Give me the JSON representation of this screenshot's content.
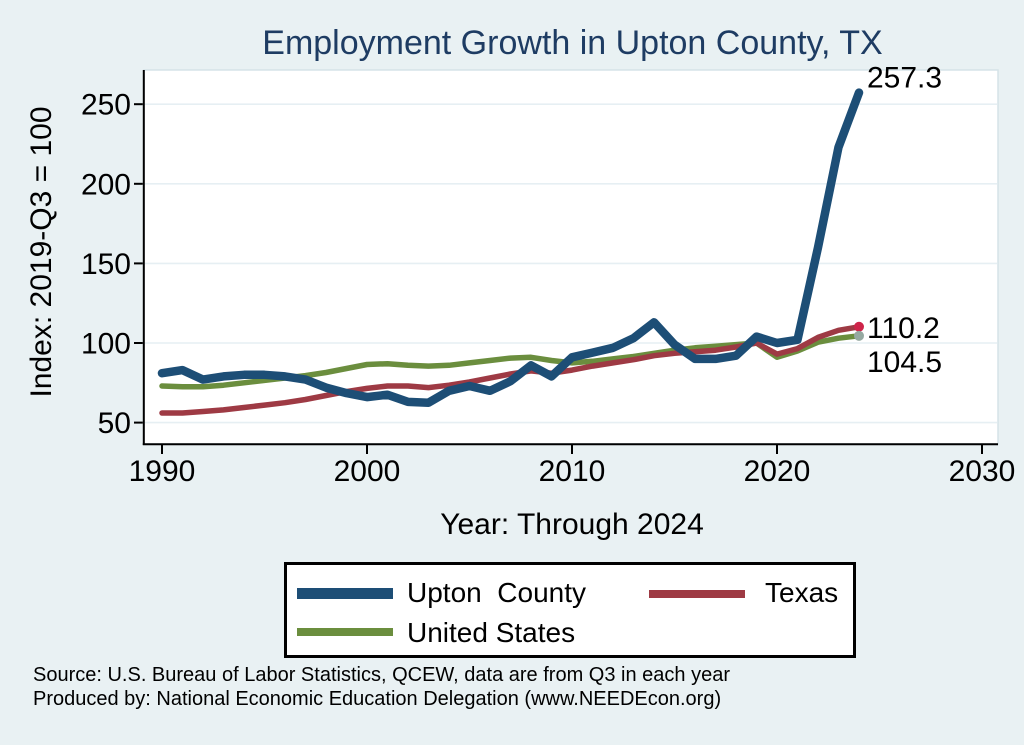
{
  "colors": {
    "page_background": "#e9f1f3",
    "plot_background": "#ffffff",
    "title_color": "#1e3c63",
    "gridline_color": "#e6eff3",
    "axis_color": "#000000"
  },
  "chart_data": {
    "type": "line",
    "title": "Employment Growth in Upton County, TX",
    "xlabel": "Year: Through 2024",
    "ylabel": "Index: 2019-Q3 = 100",
    "grid": "horizontal",
    "legend_position": "bottom",
    "x_range": [
      1989.1,
      2030.8
    ],
    "y_range": [
      37,
      272
    ],
    "x_ticks": [
      1990,
      2000,
      2010,
      2020,
      2030
    ],
    "y_ticks": [
      50,
      100,
      150,
      200,
      250
    ],
    "years": [
      1990,
      1991,
      1992,
      1993,
      1994,
      1995,
      1996,
      1997,
      1998,
      1999,
      2000,
      2001,
      2002,
      2003,
      2004,
      2005,
      2006,
      2007,
      2008,
      2009,
      2010,
      2011,
      2012,
      2013,
      2014,
      2015,
      2016,
      2017,
      2018,
      2019,
      2020,
      2021,
      2022,
      2023,
      2024
    ],
    "series": [
      {
        "name": "Upton  County",
        "color": "#1d4e76",
        "line_width": 8.5,
        "end_label": "257.3",
        "values": [
          81,
          83,
          77,
          79,
          80,
          80,
          79,
          77,
          72,
          68.5,
          66,
          67.5,
          63,
          62.5,
          70,
          73,
          70,
          76,
          86,
          79,
          91,
          94,
          97,
          103,
          113,
          99,
          90,
          90,
          92,
          104,
          100,
          102,
          160,
          223,
          257.3
        ]
      },
      {
        "name": "Texas",
        "color": "#9e3a44",
        "line_width": 5.5,
        "end_label": "110.2",
        "end_marker_color": "#ce2449",
        "values": [
          56,
          56,
          57,
          58,
          59.5,
          61,
          62.5,
          64.5,
          67,
          69.5,
          71.5,
          73,
          73,
          72,
          73.5,
          75.5,
          78,
          80.5,
          82.5,
          81,
          83,
          85.5,
          87.5,
          89.5,
          92,
          93.5,
          94.5,
          95.5,
          97.5,
          100,
          93,
          96.5,
          103.5,
          108,
          110.2
        ]
      },
      {
        "name": "United States",
        "color": "#6b8e3e",
        "line_width": 5.5,
        "end_label": "104.5",
        "end_marker_color": "#95a9a1",
        "values": [
          73,
          72.5,
          72.5,
          73.5,
          75,
          76.5,
          78,
          79.5,
          81.5,
          84,
          86.5,
          87,
          86,
          85.5,
          86,
          87.5,
          89,
          90.5,
          91,
          89,
          87.5,
          88.5,
          90,
          91.5,
          93.5,
          95.5,
          97,
          98,
          99,
          100,
          91,
          95,
          100.5,
          103,
          104.5
        ]
      }
    ]
  },
  "footer": {
    "line1": "Source: U.S. Bureau of Labor Statistics, QCEW, data are from Q3 in each year",
    "line2": "Produced by: National Economic Education Delegation (www.NEEDEcon.org)"
  }
}
